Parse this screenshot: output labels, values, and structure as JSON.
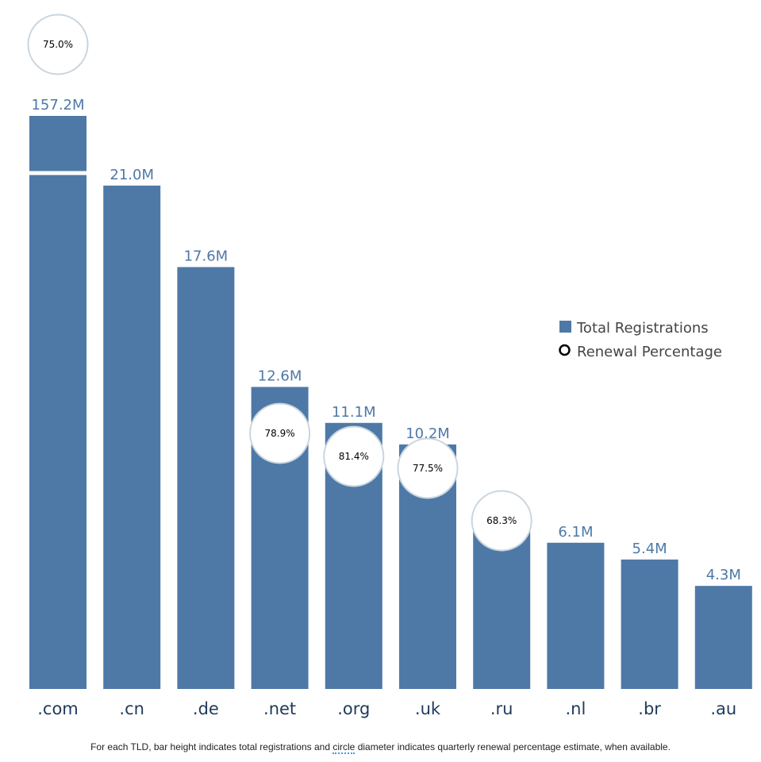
{
  "chart_data": {
    "type": "bar",
    "categories": [
      ".com",
      ".cn",
      ".de",
      ".net",
      ".org",
      ".uk",
      ".ru",
      ".nl",
      ".br",
      ".au"
    ],
    "series": [
      {
        "name": "Total Registrations",
        "values": [
          157.2,
          21.0,
          17.6,
          12.6,
          11.1,
          10.2,
          6.6,
          6.1,
          5.4,
          4.3
        ],
        "value_labels": [
          "157.2M",
          "21.0M",
          "17.6M",
          "12.6M",
          "11.1M",
          "10.2M",
          "6.6M",
          "6.1M",
          "5.4M",
          "4.3M"
        ]
      },
      {
        "name": "Renewal Percentage",
        "values": [
          75.0,
          null,
          null,
          78.9,
          81.4,
          77.5,
          68.3,
          null,
          null,
          null
        ],
        "value_labels": [
          "75.0%",
          null,
          null,
          "78.9%",
          "81.4%",
          "77.5%",
          "68.3%",
          null,
          null,
          null
        ]
      }
    ],
    "y_axis_break": true,
    "grid": false,
    "legend_position": "right",
    "colors": {
      "bar": "#4e79a7",
      "bar_label": "#4e79a7",
      "circle_stroke": "#c9d5df",
      "tick_label": "#1f3a5a",
      "legend_text": "#444444"
    },
    "legend": [
      {
        "label": "Total Registrations",
        "marker": "square"
      },
      {
        "label": "Renewal Percentage",
        "marker": "circle"
      }
    ]
  },
  "footnote": {
    "before": "For each TLD, bar height indicates total registrations and ",
    "highlight": "circle",
    "after": " diameter indicates quarterly renewal percentage estimate, when available."
  }
}
